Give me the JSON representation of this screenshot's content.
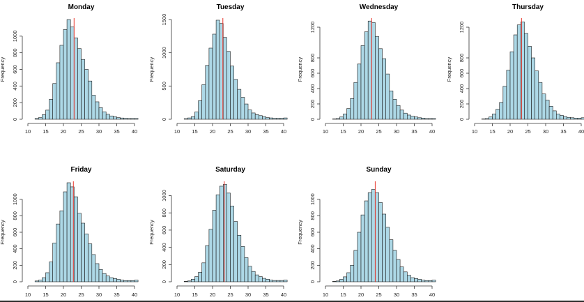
{
  "chart_data": [
    {
      "type": "bar",
      "title": "Monday",
      "ylabel": "Frequency",
      "xlim": [
        10,
        40
      ],
      "xticks": [
        10,
        15,
        20,
        25,
        30,
        35,
        40
      ],
      "ylim": [
        0,
        1200
      ],
      "yticks": [
        0,
        200,
        400,
        600,
        800,
        1000
      ],
      "bin_start": 12,
      "bin_width": 1,
      "values": [
        10,
        20,
        55,
        110,
        240,
        430,
        680,
        890,
        1080,
        1200,
        1110,
        980,
        850,
        720,
        600,
        460,
        290,
        210,
        140,
        90,
        60,
        40,
        30,
        20,
        15,
        12,
        10,
        10,
        10
      ],
      "mean": 23
    },
    {
      "type": "bar",
      "title": "Tuesday",
      "ylabel": "Frequency",
      "xlim": [
        10,
        40
      ],
      "xticks": [
        10,
        15,
        20,
        25,
        30,
        35,
        40
      ],
      "ylim": [
        0,
        1500
      ],
      "yticks": [
        0,
        500,
        1000,
        1500
      ],
      "bin_start": 12,
      "bin_width": 1,
      "values": [
        10,
        20,
        40,
        110,
        280,
        520,
        810,
        1070,
        1280,
        1490,
        1440,
        1230,
        1020,
        800,
        600,
        450,
        330,
        230,
        140,
        95,
        70,
        55,
        40,
        25,
        20,
        15,
        15,
        15,
        20
      ],
      "mean": 22.9
    },
    {
      "type": "bar",
      "title": "Wednesday",
      "ylabel": "Frequency",
      "xlim": [
        10,
        40
      ],
      "xticks": [
        10,
        15,
        20,
        25,
        30,
        35,
        40
      ],
      "ylim": [
        0,
        1300
      ],
      "yticks": [
        0,
        200,
        400,
        600,
        800,
        1200
      ],
      "bin_start": 12,
      "bin_width": 1,
      "values": [
        5,
        10,
        30,
        70,
        140,
        270,
        480,
        720,
        960,
        1140,
        1280,
        1260,
        1080,
        920,
        790,
        590,
        370,
        260,
        180,
        120,
        80,
        55,
        40,
        30,
        20,
        15,
        10,
        10,
        10
      ],
      "mean": 23
    },
    {
      "type": "bar",
      "title": "Thursday",
      "ylabel": "Frequency",
      "xlim": [
        10,
        40
      ],
      "xticks": [
        10,
        15,
        20,
        25,
        30,
        35,
        40
      ],
      "ylim": [
        0,
        1300
      ],
      "yticks": [
        0,
        200,
        400,
        600,
        800,
        1200
      ],
      "bin_start": 12,
      "bin_width": 1,
      "values": [
        5,
        10,
        30,
        70,
        130,
        220,
        430,
        640,
        880,
        1100,
        1230,
        1270,
        1120,
        950,
        800,
        630,
        480,
        330,
        250,
        170,
        110,
        70,
        50,
        35,
        25,
        20,
        15,
        15,
        20
      ],
      "mean": 23.2
    },
    {
      "type": "bar",
      "title": "Friday",
      "ylabel": "Frequency",
      "xlim": [
        10,
        40
      ],
      "xticks": [
        10,
        15,
        20,
        25,
        30,
        35,
        40
      ],
      "ylim": [
        0,
        1200
      ],
      "yticks": [
        0,
        200,
        400,
        600,
        800,
        1000
      ],
      "bin_start": 12,
      "bin_width": 1,
      "values": [
        10,
        20,
        50,
        110,
        240,
        470,
        700,
        860,
        1090,
        1200,
        1150,
        1030,
        830,
        710,
        580,
        460,
        330,
        220,
        150,
        100,
        70,
        50,
        40,
        30,
        20,
        15,
        15,
        15,
        20
      ],
      "mean": 22.8
    },
    {
      "type": "bar",
      "title": "Saturday",
      "ylabel": "Frequency",
      "xlim": [
        10,
        40
      ],
      "xticks": [
        10,
        15,
        20,
        25,
        30,
        35,
        40
      ],
      "ylim": [
        0,
        1150
      ],
      "yticks": [
        0,
        200,
        400,
        600,
        800,
        1000
      ],
      "bin_start": 12,
      "bin_width": 1,
      "values": [
        5,
        10,
        30,
        60,
        110,
        220,
        420,
        610,
        830,
        1010,
        1110,
        1130,
        1030,
        880,
        700,
        540,
        410,
        280,
        180,
        120,
        80,
        60,
        40,
        30,
        20,
        15,
        15,
        15,
        20
      ],
      "mean": 23.3
    },
    {
      "type": "bar",
      "title": "Sunday",
      "ylabel": "Frequency",
      "xlim": [
        10,
        40
      ],
      "xticks": [
        10,
        15,
        20,
        25,
        30,
        35,
        40
      ],
      "ylim": [
        0,
        1200
      ],
      "yticks": [
        0,
        200,
        400,
        600,
        800,
        1000
      ],
      "bin_start": 12,
      "bin_width": 1,
      "values": [
        5,
        10,
        30,
        60,
        110,
        200,
        380,
        600,
        810,
        980,
        1080,
        1120,
        1080,
        960,
        820,
        660,
        510,
        380,
        270,
        180,
        120,
        80,
        50,
        40,
        30,
        20,
        15,
        15,
        20
      ],
      "mean": 24
    }
  ]
}
